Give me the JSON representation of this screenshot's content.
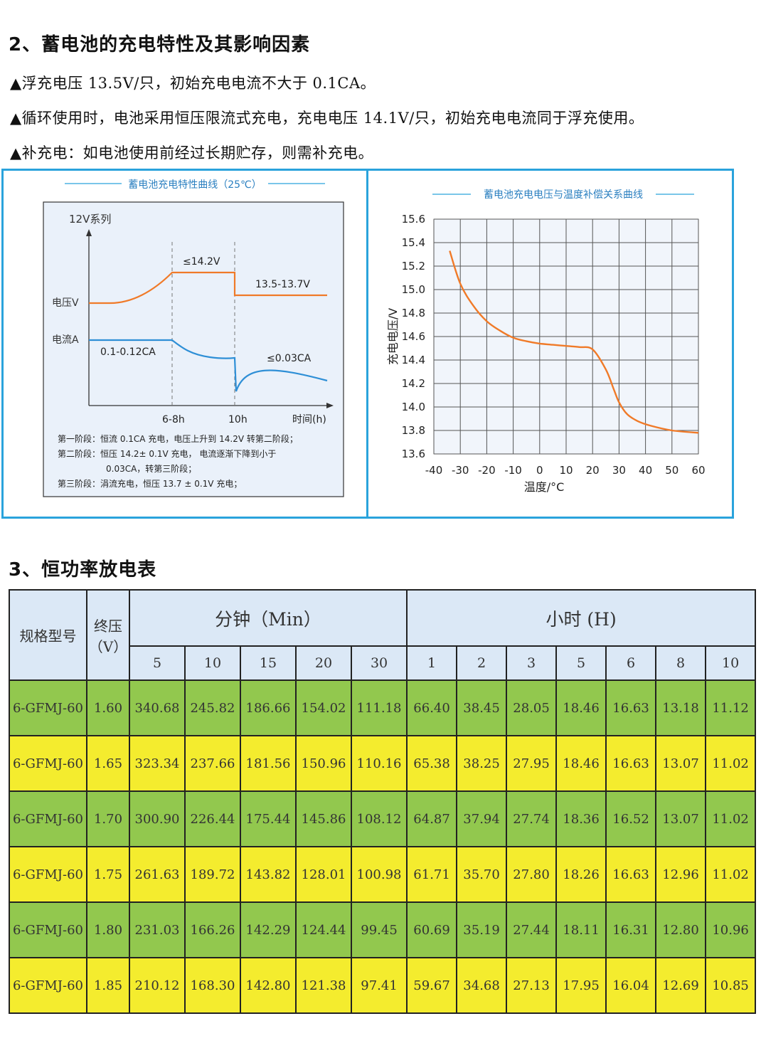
{
  "section2": {
    "title": "2、蓄电池的充电特性及其影响因素",
    "bullets": [
      "▲浮充电压 13.5V/只，初始充电电流不大于 0.1CA。",
      "▲循环使用时，电池采用恒压限流式充电，充电电压 14.1V/只，初始充电电流同于浮充使用。",
      "▲补充电：如电池使用前经过长期贮存，则需补充电。"
    ]
  },
  "figure_left": {
    "title": "蓄电池充电特性曲线（25℃）",
    "series_label": "12V系列",
    "voltage_label": "电压V",
    "current_label": "电流A",
    "v_peak_label": "≤14.2V",
    "v_float_label": "13.5-13.7V",
    "i_initial_label": "0.1-0.12CA",
    "i_final_label": "≤0.03CA",
    "x_tick_1": "6-8h",
    "x_tick_2": "10h",
    "x_axis_label": "时间(h)",
    "notes": [
      "第一阶段：恒流 0.1CA 充电，电压上升到 14.2V 转第二阶段；",
      "第二阶段：恒压 14.2± 0.1V 充电，  电流逐渐下降到小于",
      "0.03CA，转第三阶段；",
      "第三阶段：涓流充电，恒压 13.7 ± 0.1V 充电；"
    ]
  },
  "chart_data": {
    "type": "line",
    "title": "蓄电池充电电压与温度补偿关系曲线",
    "xlabel": "温度/°C",
    "ylabel": "充电电压/V",
    "xlim": [
      -40,
      60
    ],
    "ylim": [
      13.6,
      15.6
    ],
    "x_ticks": [
      "-40",
      "-30",
      "-20",
      "-10",
      "0",
      "10",
      "20",
      "30",
      "40",
      "50",
      "60"
    ],
    "y_ticks": [
      "15.6",
      "15.4",
      "15.2",
      "15.0",
      "14.8",
      "14.6",
      "14.4",
      "14.2",
      "14.0",
      "13.8",
      "13.6"
    ],
    "grid": true,
    "series": [
      {
        "color": "#f07a28",
        "x": [
          -34,
          -30,
          -25,
          -20,
          -15,
          -10,
          -5,
          0,
          5,
          10,
          15,
          20,
          25,
          28,
          30,
          33,
          37,
          42,
          50,
          60
        ],
        "y": [
          15.33,
          15.05,
          14.86,
          14.73,
          14.65,
          14.59,
          14.56,
          14.54,
          14.53,
          14.52,
          14.51,
          14.49,
          14.32,
          14.15,
          14.04,
          13.94,
          13.88,
          13.84,
          13.8,
          13.78
        ]
      }
    ]
  },
  "section3": {
    "title": "3、恒功率放电表",
    "header": {
      "model": "规格型号",
      "endv": "终压",
      "endv_unit": "（V）",
      "minutes": "分钟（Min）",
      "hours": "小时  (H)",
      "min_cols": [
        "5",
        "10",
        "15",
        "20",
        "30"
      ],
      "hour_cols": [
        "1",
        "2",
        "3",
        "5",
        "6",
        "8",
        "10"
      ]
    },
    "rows": [
      [
        "6-GFMJ-60",
        "1.60",
        "340.68",
        "245.82",
        "186.66",
        "154.02",
        "111.18",
        "66.40",
        "38.45",
        "28.05",
        "18.46",
        "16.63",
        "13.18",
        "11.12"
      ],
      [
        "6-GFMJ-60",
        "1.65",
        "323.34",
        "237.66",
        "181.56",
        "150.96",
        "110.16",
        "65.38",
        "38.25",
        "27.95",
        "18.46",
        "16.63",
        "13.07",
        "11.02"
      ],
      [
        "6-GFMJ-60",
        "1.70",
        "300.90",
        "226.44",
        "175.44",
        "145.86",
        "108.12",
        "64.87",
        "37.94",
        "27.74",
        "18.36",
        "16.52",
        "13.07",
        "11.02"
      ],
      [
        "6-GFMJ-60",
        "1.75",
        "261.63",
        "189.72",
        "143.82",
        "128.01",
        "100.98",
        "61.71",
        "35.70",
        "27.80",
        "18.26",
        "16.63",
        "12.96",
        "11.02"
      ],
      [
        "6-GFMJ-60",
        "1.80",
        "231.03",
        "166.26",
        "142.29",
        "124.44",
        "99.45",
        "60.69",
        "35.19",
        "27.44",
        "18.11",
        "16.31",
        "12.80",
        "10.96"
      ],
      [
        "6-GFMJ-60",
        "1.85",
        "210.12",
        "168.30",
        "142.80",
        "121.38",
        "97.41",
        "59.67",
        "34.68",
        "27.13",
        "17.95",
        "16.04",
        "12.69",
        "10.85"
      ]
    ],
    "row_colors": [
      "#92c84e",
      "#f4ec2e"
    ]
  }
}
